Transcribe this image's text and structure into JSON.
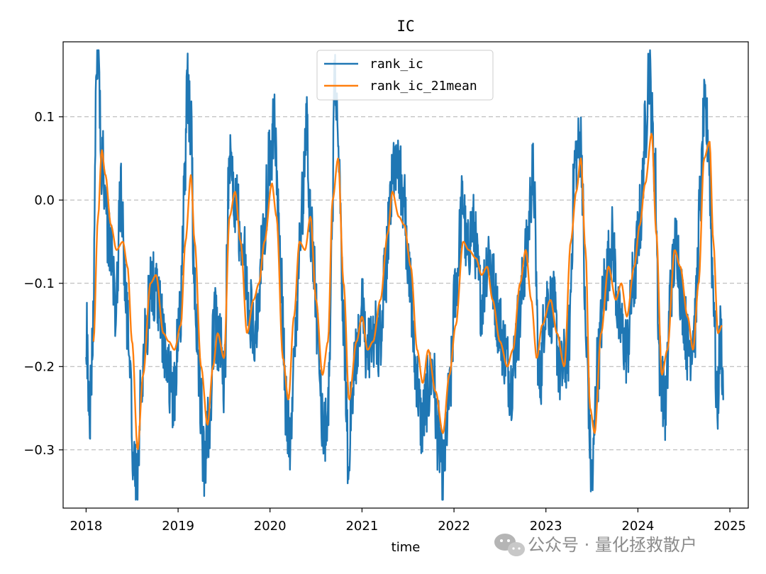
{
  "chart_data": {
    "type": "line",
    "title": "IC",
    "xlabel": "time",
    "ylabel": "",
    "xlim": [
      2017.75,
      2025.2
    ],
    "ylim": [
      -0.37,
      0.19
    ],
    "x_ticks": [
      2018,
      2019,
      2020,
      2021,
      2022,
      2023,
      2024,
      2025
    ],
    "x_tick_labels": [
      "2018",
      "2019",
      "2020",
      "2021",
      "2022",
      "2023",
      "2024",
      "2025"
    ],
    "y_ticks": [
      0.1,
      0.0,
      -0.1,
      -0.2,
      -0.3
    ],
    "y_tick_labels": [
      "0.1",
      "0.0",
      "−0.1",
      "−0.2",
      "−0.3"
    ],
    "grid": "y-dashed",
    "legend_position": "upper-center",
    "colors": {
      "rank_ic": "#1f77b4",
      "rank_ic_21mean": "#ff7f0e",
      "grid": "#b0b0b0",
      "watermark": "#8c8c8c"
    },
    "series": [
      {
        "name": "rank_ic",
        "note": "noisy daily series; anchor points (year, value), rendered with deterministic jitter",
        "anchors": [
          [
            2018.0,
            -0.15
          ],
          [
            2018.04,
            -0.25
          ],
          [
            2018.08,
            -0.13
          ],
          [
            2018.11,
            0.13
          ],
          [
            2018.13,
            0.165
          ],
          [
            2018.17,
            0.05
          ],
          [
            2018.25,
            -0.05
          ],
          [
            2018.32,
            -0.12
          ],
          [
            2018.38,
            0.0
          ],
          [
            2018.45,
            -0.15
          ],
          [
            2018.52,
            -0.32
          ],
          [
            2018.55,
            -0.345
          ],
          [
            2018.6,
            -0.23
          ],
          [
            2018.65,
            -0.15
          ],
          [
            2018.72,
            -0.1
          ],
          [
            2018.8,
            -0.13
          ],
          [
            2018.88,
            -0.2
          ],
          [
            2018.95,
            -0.23
          ],
          [
            2019.02,
            -0.15
          ],
          [
            2019.08,
            0.05
          ],
          [
            2019.1,
            0.135
          ],
          [
            2019.14,
            0.08
          ],
          [
            2019.18,
            -0.12
          ],
          [
            2019.25,
            -0.25
          ],
          [
            2019.28,
            -0.32
          ],
          [
            2019.33,
            -0.27
          ],
          [
            2019.4,
            -0.15
          ],
          [
            2019.45,
            -0.17
          ],
          [
            2019.5,
            -0.22
          ],
          [
            2019.56,
            0.06
          ],
          [
            2019.62,
            0.0
          ],
          [
            2019.7,
            -0.06
          ],
          [
            2019.78,
            -0.14
          ],
          [
            2019.85,
            -0.15
          ],
          [
            2019.92,
            -0.05
          ],
          [
            2020.0,
            0.05
          ],
          [
            2020.05,
            0.09
          ],
          [
            2020.1,
            -0.05
          ],
          [
            2020.18,
            -0.25
          ],
          [
            2020.22,
            -0.3
          ],
          [
            2020.28,
            -0.15
          ],
          [
            2020.35,
            0.0
          ],
          [
            2020.4,
            0.08
          ],
          [
            2020.45,
            -0.05
          ],
          [
            2020.52,
            -0.15
          ],
          [
            2020.58,
            -0.29
          ],
          [
            2020.63,
            -0.25
          ],
          [
            2020.68,
            0.0
          ],
          [
            2020.7,
            0.15
          ],
          [
            2020.75,
            0.06
          ],
          [
            2020.8,
            -0.15
          ],
          [
            2020.85,
            -0.305
          ],
          [
            2020.9,
            -0.22
          ],
          [
            2021.0,
            -0.13
          ],
          [
            2021.05,
            -0.19
          ],
          [
            2021.12,
            -0.16
          ],
          [
            2021.2,
            -0.17
          ],
          [
            2021.26,
            -0.08
          ],
          [
            2021.32,
            0.02
          ],
          [
            2021.38,
            0.06
          ],
          [
            2021.45,
            0.0
          ],
          [
            2021.52,
            -0.1
          ],
          [
            2021.58,
            -0.2
          ],
          [
            2021.65,
            -0.27
          ],
          [
            2021.72,
            -0.23
          ],
          [
            2021.77,
            -0.2
          ],
          [
            2021.82,
            -0.28
          ],
          [
            2021.88,
            -0.33
          ],
          [
            2021.95,
            -0.24
          ],
          [
            2022.02,
            -0.1
          ],
          [
            2022.1,
            0.0
          ],
          [
            2022.14,
            -0.07
          ],
          [
            2022.2,
            -0.03
          ],
          [
            2022.3,
            -0.12
          ],
          [
            2022.38,
            -0.06
          ],
          [
            2022.42,
            -0.1
          ],
          [
            2022.48,
            -0.14
          ],
          [
            2022.55,
            -0.18
          ],
          [
            2022.62,
            -0.22
          ],
          [
            2022.7,
            -0.15
          ],
          [
            2022.78,
            -0.07
          ],
          [
            2022.86,
            0.03
          ],
          [
            2022.93,
            -0.22
          ],
          [
            2023.0,
            -0.12
          ],
          [
            2023.08,
            -0.13
          ],
          [
            2023.16,
            -0.21
          ],
          [
            2023.24,
            -0.18
          ],
          [
            2023.32,
            0.05
          ],
          [
            2023.38,
            0.07
          ],
          [
            2023.44,
            -0.18
          ],
          [
            2023.5,
            -0.34
          ],
          [
            2023.56,
            -0.2
          ],
          [
            2023.64,
            -0.1
          ],
          [
            2023.72,
            -0.05
          ],
          [
            2023.8,
            -0.15
          ],
          [
            2023.88,
            -0.18
          ],
          [
            2023.95,
            -0.1
          ],
          [
            2024.03,
            -0.02
          ],
          [
            2024.08,
            0.08
          ],
          [
            2024.12,
            0.16
          ],
          [
            2024.18,
            0.05
          ],
          [
            2024.24,
            -0.2
          ],
          [
            2024.3,
            -0.25
          ],
          [
            2024.36,
            -0.1
          ],
          [
            2024.42,
            -0.05
          ],
          [
            2024.48,
            -0.12
          ],
          [
            2024.55,
            -0.18
          ],
          [
            2024.62,
            -0.15
          ],
          [
            2024.68,
            0.0
          ],
          [
            2024.72,
            0.1
          ],
          [
            2024.76,
            0.08
          ],
          [
            2024.82,
            -0.1
          ],
          [
            2024.86,
            -0.25
          ],
          [
            2024.9,
            -0.16
          ],
          [
            2024.93,
            -0.23
          ]
        ]
      },
      {
        "name": "rank_ic_21mean",
        "note": "21-day rolling mean; anchor points (year, value)",
        "anchors": [
          [
            2018.08,
            -0.17
          ],
          [
            2018.13,
            -0.02
          ],
          [
            2018.17,
            0.06
          ],
          [
            2018.21,
            0.03
          ],
          [
            2018.27,
            -0.03
          ],
          [
            2018.33,
            -0.06
          ],
          [
            2018.4,
            -0.05
          ],
          [
            2018.45,
            -0.08
          ],
          [
            2018.5,
            -0.17
          ],
          [
            2018.56,
            -0.3
          ],
          [
            2018.62,
            -0.21
          ],
          [
            2018.7,
            -0.1
          ],
          [
            2018.76,
            -0.09
          ],
          [
            2018.84,
            -0.16
          ],
          [
            2018.9,
            -0.17
          ],
          [
            2018.96,
            -0.18
          ],
          [
            2019.03,
            -0.15
          ],
          [
            2019.08,
            -0.05
          ],
          [
            2019.14,
            0.03
          ],
          [
            2019.18,
            -0.05
          ],
          [
            2019.25,
            -0.2
          ],
          [
            2019.32,
            -0.27
          ],
          [
            2019.38,
            -0.2
          ],
          [
            2019.43,
            -0.16
          ],
          [
            2019.5,
            -0.19
          ],
          [
            2019.56,
            -0.02
          ],
          [
            2019.62,
            0.01
          ],
          [
            2019.68,
            -0.05
          ],
          [
            2019.75,
            -0.16
          ],
          [
            2019.82,
            -0.12
          ],
          [
            2019.88,
            -0.1
          ],
          [
            2019.94,
            -0.05
          ],
          [
            2020.02,
            0.02
          ],
          [
            2020.07,
            -0.02
          ],
          [
            2020.14,
            -0.19
          ],
          [
            2020.2,
            -0.24
          ],
          [
            2020.26,
            -0.14
          ],
          [
            2020.32,
            -0.05
          ],
          [
            2020.38,
            -0.06
          ],
          [
            2020.44,
            -0.02
          ],
          [
            2020.5,
            -0.12
          ],
          [
            2020.57,
            -0.21
          ],
          [
            2020.63,
            -0.17
          ],
          [
            2020.68,
            0.0
          ],
          [
            2020.74,
            0.05
          ],
          [
            2020.8,
            -0.1
          ],
          [
            2020.86,
            -0.24
          ],
          [
            2020.94,
            -0.17
          ],
          [
            2021.0,
            -0.14
          ],
          [
            2021.06,
            -0.18
          ],
          [
            2021.12,
            -0.17
          ],
          [
            2021.2,
            -0.12
          ],
          [
            2021.28,
            -0.04
          ],
          [
            2021.33,
            0.01
          ],
          [
            2021.4,
            -0.02
          ],
          [
            2021.46,
            -0.03
          ],
          [
            2021.53,
            -0.08
          ],
          [
            2021.6,
            -0.18
          ],
          [
            2021.66,
            -0.22
          ],
          [
            2021.72,
            -0.18
          ],
          [
            2021.8,
            -0.23
          ],
          [
            2021.88,
            -0.28
          ],
          [
            2021.95,
            -0.21
          ],
          [
            2022.02,
            -0.15
          ],
          [
            2022.1,
            -0.05
          ],
          [
            2022.16,
            -0.06
          ],
          [
            2022.24,
            -0.07
          ],
          [
            2022.3,
            -0.09
          ],
          [
            2022.36,
            -0.08
          ],
          [
            2022.42,
            -0.12
          ],
          [
            2022.5,
            -0.17
          ],
          [
            2022.58,
            -0.2
          ],
          [
            2022.64,
            -0.18
          ],
          [
            2022.72,
            -0.1
          ],
          [
            2022.78,
            -0.06
          ],
          [
            2022.84,
            -0.12
          ],
          [
            2022.9,
            -0.19
          ],
          [
            2022.96,
            -0.15
          ],
          [
            2023.05,
            -0.12
          ],
          [
            2023.12,
            -0.16
          ],
          [
            2023.2,
            -0.2
          ],
          [
            2023.27,
            -0.05
          ],
          [
            2023.33,
            0.01
          ],
          [
            2023.38,
            0.05
          ],
          [
            2023.43,
            -0.06
          ],
          [
            2023.48,
            -0.25
          ],
          [
            2023.53,
            -0.28
          ],
          [
            2023.6,
            -0.16
          ],
          [
            2023.68,
            -0.08
          ],
          [
            2023.76,
            -0.12
          ],
          [
            2023.82,
            -0.1
          ],
          [
            2023.88,
            -0.14
          ],
          [
            2023.96,
            -0.08
          ],
          [
            2024.02,
            -0.03
          ],
          [
            2024.08,
            0.02
          ],
          [
            2024.15,
            0.08
          ],
          [
            2024.2,
            -0.04
          ],
          [
            2024.26,
            -0.21
          ],
          [
            2024.32,
            -0.18
          ],
          [
            2024.4,
            -0.06
          ],
          [
            2024.46,
            -0.08
          ],
          [
            2024.54,
            -0.14
          ],
          [
            2024.6,
            -0.18
          ],
          [
            2024.66,
            -0.1
          ],
          [
            2024.72,
            0.05
          ],
          [
            2024.78,
            0.07
          ],
          [
            2024.82,
            -0.05
          ],
          [
            2024.87,
            -0.16
          ],
          [
            2024.92,
            -0.15
          ]
        ]
      }
    ]
  },
  "watermark": {
    "text": "公众号 · 量化拯救散户",
    "icon": "wechat-icon"
  }
}
